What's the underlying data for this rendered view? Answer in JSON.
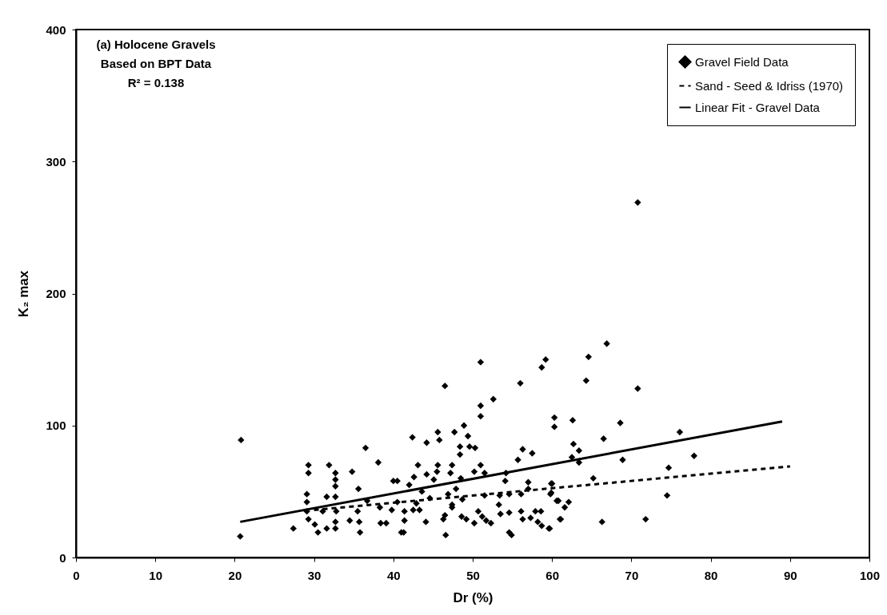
{
  "chart_data": {
    "type": "scatter",
    "xlabel": "Dr (%)",
    "ylabel": "K₂ max",
    "annotations": [
      "(a) Holocene Gravels",
      "Based on BPT Data",
      "R² = 0.138"
    ],
    "xlim": [
      0,
      100
    ],
    "xticks": [
      0,
      10,
      20,
      30,
      40,
      50,
      60,
      70,
      80,
      90,
      100
    ],
    "ylim": [
      0,
      400
    ],
    "yticks": [
      0,
      100,
      200,
      300,
      400
    ],
    "grid": false,
    "legend": "top right",
    "series": [
      {
        "name": "Gravel Field Data",
        "color": "#000000",
        "marker": "diamond",
        "x": [
          20.8,
          20.7,
          29.3,
          29.3,
          31.9,
          32.7,
          32.7,
          32.7,
          34.8,
          36.5,
          38.1,
          40,
          35.6,
          29.1,
          29.1,
          31.6,
          32.7,
          31.1,
          32.8,
          29.1,
          29.3,
          30.1,
          30.5,
          27.4,
          31.6,
          32.7,
          32.7,
          34.5,
          35.5,
          35.7,
          35.8,
          36.7,
          38.3,
          38.4,
          39.1,
          41,
          39.8,
          51,
          51,
          42.4,
          44.2,
          45.6,
          45.8,
          47.7,
          48.9,
          49.4,
          49.6,
          50.3,
          48.4,
          48.4,
          60.3,
          60.3,
          62.6,
          62.7,
          63.4,
          62.5,
          63.4,
          65.2,
          56.3,
          57.5,
          55.7,
          43.1,
          44.2,
          45.6,
          45.5,
          47.4,
          47.2,
          42.6,
          45.1,
          42,
          40.5,
          43.6,
          44.6,
          46.9,
          47.9,
          48.5,
          50.2,
          51,
          51.5,
          54.2,
          54.1,
          51.5,
          48.7,
          47.4,
          53.4,
          54.6,
          56.1,
          57,
          57,
          60,
          59.8,
          60.8,
          61.6,
          62.1,
          40.5,
          41.4,
          42.5,
          42.9,
          43.3,
          41.4,
          44.1,
          46.3,
          46.5,
          41.3,
          46.6,
          47.4,
          48.6,
          49.2,
          50.2,
          50.7,
          51.2,
          51.7,
          52.3,
          53.3,
          53.5,
          54.6,
          54.6,
          54.9,
          56.1,
          56.3,
          57.3,
          57.9,
          58.6,
          58.2,
          58.7,
          59.6,
          61,
          66.9,
          64.6,
          64.3,
          70.8,
          59.2,
          58.7,
          68.6,
          76.1,
          66.5,
          68.9,
          77.9,
          74.7,
          74.5,
          59.9,
          59.9,
          60.6,
          61.1,
          59.7,
          66.3,
          71.8,
          70.8,
          51,
          46.5,
          56,
          52.6
        ],
        "values": [
          89,
          16,
          70,
          64,
          70,
          64,
          59,
          54,
          65,
          83,
          72,
          58,
          52,
          48,
          42,
          46,
          46,
          35,
          35,
          35,
          29,
          25,
          19,
          22,
          22,
          22,
          27,
          28,
          35,
          27,
          19,
          43,
          38,
          26,
          26,
          19,
          36,
          115,
          107,
          91,
          87,
          95,
          89,
          95,
          100,
          92,
          84,
          83,
          84,
          78,
          106,
          99,
          104,
          86,
          81,
          76,
          72,
          60,
          82,
          79,
          74,
          70,
          63,
          70,
          65,
          70,
          64,
          61,
          59,
          55,
          58,
          50,
          45,
          48,
          52,
          60,
          65,
          70,
          64,
          64,
          58,
          47,
          44,
          40,
          47,
          48,
          48,
          57,
          52,
          56,
          48,
          43,
          38,
          42,
          42,
          35,
          36,
          41,
          36,
          28,
          27,
          29,
          32,
          19,
          17,
          38,
          31,
          29,
          26,
          35,
          31,
          28,
          26,
          40,
          33,
          34,
          19,
          17,
          35,
          29,
          30,
          35,
          35,
          27,
          24,
          22,
          29,
          162,
          152,
          134,
          128,
          150,
          144,
          102,
          95,
          90,
          74,
          77,
          68,
          47,
          56,
          49,
          43,
          29,
          22,
          27,
          29,
          269,
          148,
          130,
          132,
          120
        ]
      },
      {
        "name": "Sand - Seed & Idriss (1970)",
        "color": "#000000",
        "type": "line",
        "line_style": "dashed",
        "x": [
          30,
          90
        ],
        "values": [
          36,
          69
        ]
      },
      {
        "name": "Linear Fit - Gravel Data",
        "color": "#000000",
        "type": "line",
        "line_style": "solid",
        "x": [
          20.7,
          89
        ],
        "values": [
          27,
          103
        ]
      }
    ]
  }
}
